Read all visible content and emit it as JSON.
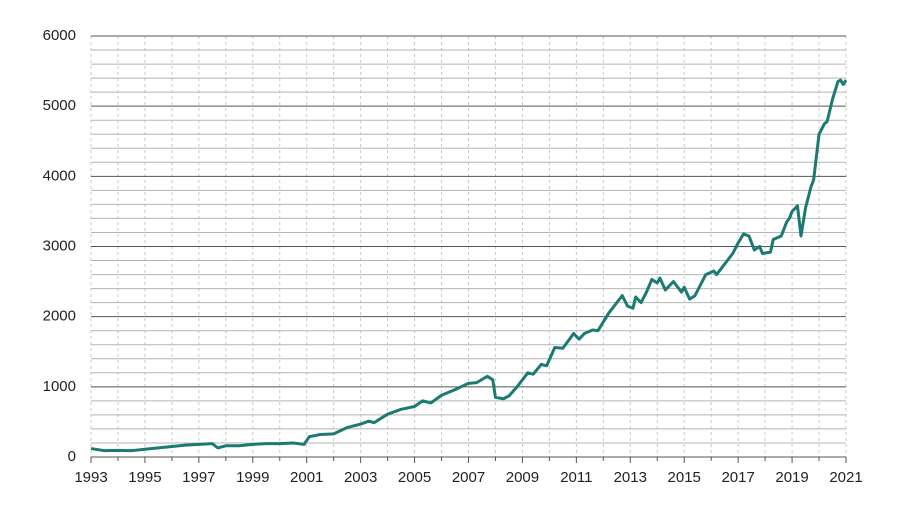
{
  "chart_data": {
    "type": "line",
    "x": [
      1993.0,
      1993.5,
      1994.0,
      1994.5,
      1995.0,
      1995.5,
      1996.0,
      1996.5,
      1997.0,
      1997.5,
      1997.7,
      1998.0,
      1998.5,
      1999.0,
      1999.5,
      2000.0,
      2000.5,
      2000.9,
      2001.1,
      2001.5,
      2002.0,
      2002.5,
      2003.0,
      2003.3,
      2003.5,
      2004.0,
      2004.5,
      2005.0,
      2005.3,
      2005.6,
      2006.0,
      2006.5,
      2007.0,
      2007.3,
      2007.7,
      2007.9,
      2008.0,
      2008.3,
      2008.5,
      2008.8,
      2009.2,
      2009.4,
      2009.7,
      2009.9,
      2010.2,
      2010.5,
      2010.9,
      2011.1,
      2011.3,
      2011.6,
      2011.8,
      2012.2,
      2012.5,
      2012.7,
      2012.9,
      2013.1,
      2013.2,
      2013.4,
      2013.6,
      2013.8,
      2014.0,
      2014.1,
      2014.3,
      2014.6,
      2014.9,
      2015.0,
      2015.2,
      2015.4,
      2015.6,
      2015.8,
      2016.1,
      2016.2,
      2016.5,
      2016.8,
      2017.0,
      2017.2,
      2017.4,
      2017.6,
      2017.8,
      2017.9,
      2018.2,
      2018.3,
      2018.6,
      2018.8,
      2018.9,
      2019.0,
      2019.2,
      2019.33,
      2019.5,
      2019.7,
      2019.8,
      2020.0,
      2020.2,
      2020.3,
      2020.5,
      2020.7,
      2020.8,
      2020.9,
      2021.0
    ],
    "series": [
      {
        "color": "#1b7a72",
        "values": [
          120,
          90,
          95,
          90,
          110,
          130,
          150,
          170,
          180,
          190,
          130,
          160,
          160,
          180,
          190,
          190,
          200,
          180,
          290,
          320,
          330,
          420,
          470,
          510,
          490,
          610,
          680,
          720,
          800,
          770,
          880,
          960,
          1050,
          1060,
          1150,
          1100,
          850,
          830,
          870,
          1000,
          1200,
          1180,
          1320,
          1300,
          1560,
          1550,
          1760,
          1680,
          1760,
          1810,
          1800,
          2050,
          2200,
          2300,
          2150,
          2120,
          2280,
          2200,
          2350,
          2530,
          2480,
          2550,
          2380,
          2500,
          2350,
          2420,
          2250,
          2300,
          2450,
          2600,
          2650,
          2600,
          2750,
          2900,
          3050,
          3180,
          3150,
          2950,
          3000,
          2900,
          2920,
          3100,
          3150,
          3350,
          3400,
          3500,
          3580,
          3150,
          3550,
          3850,
          3950,
          4600,
          4750,
          4780,
          5100,
          5350,
          5370,
          5310,
          5370
        ]
      }
    ],
    "xlim": [
      1993,
      2021
    ],
    "xticks": [
      1993,
      1995,
      1997,
      1999,
      2001,
      2003,
      2005,
      2007,
      2009,
      2011,
      2013,
      2015,
      2017,
      2019,
      2021
    ],
    "x_minor_ticks": [
      1994,
      1996,
      1998,
      2000,
      2002,
      2004,
      2006,
      2008,
      2010,
      2012,
      2014,
      2016,
      2018,
      2020
    ],
    "ylim": [
      0,
      6000
    ],
    "yticks": [
      0,
      1000,
      2000,
      3000,
      4000,
      5000,
      6000
    ],
    "y_minor_ticks": [
      200,
      400,
      600,
      800,
      1200,
      1400,
      1600,
      1800,
      2200,
      2400,
      2600,
      2800,
      3200,
      3400,
      3600,
      3800,
      4200,
      4400,
      4600,
      4800,
      5200,
      5400,
      5600,
      5800
    ],
    "grid": true
  }
}
